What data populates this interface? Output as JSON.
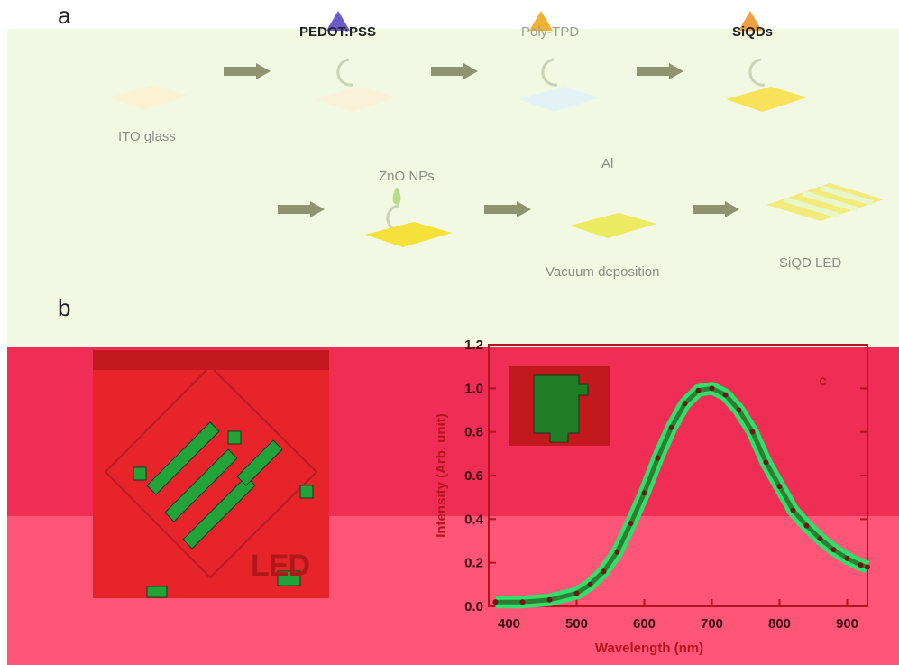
{
  "panel_a": {
    "letter": "a",
    "steps": {
      "ito": "ITO glass",
      "pedot": "PEDOT:PSS",
      "polytpd": "Poly-TPD",
      "siqds": "SiQDs",
      "zno": "ZnO NPs",
      "al": "Al",
      "vacuum": "Vacuum deposition",
      "final": "SiQD LED"
    }
  },
  "panel_b": {
    "letter": "b",
    "photo_text": "LED"
  },
  "colors": {
    "panel_a_bg": "#f2f9e2",
    "panel_b_bg": "#ef2d55",
    "arrow": "#8e9470",
    "spectrum": "#2e7d32",
    "highlight": "#2fe06d"
  },
  "chart_data": {
    "type": "line",
    "panel_letter": "c",
    "xlabel": "Wavelength (nm)",
    "ylabel": "Intensity (Arb. unit)",
    "xlim": [
      370,
      930
    ],
    "ylim": [
      0.0,
      1.2
    ],
    "xticks": [
      400,
      500,
      600,
      700,
      800,
      900
    ],
    "yticks": [
      0.0,
      0.2,
      0.4,
      0.6,
      0.8,
      1.0,
      1.2
    ],
    "xtick_labels": [
      "400",
      "500",
      "600",
      "700",
      "800",
      "900"
    ],
    "ytick_labels": [
      "0.0",
      "0.2",
      "0.4",
      "0.6",
      "0.8",
      "1.0",
      "1.2"
    ],
    "series": [
      {
        "x": [
          380,
          420,
          460,
          500,
          520,
          540,
          560,
          580,
          600,
          620,
          640,
          660,
          680,
          700,
          720,
          740,
          760,
          780,
          800,
          820,
          840,
          860,
          880,
          900,
          920,
          930
        ],
        "values": [
          0.02,
          0.02,
          0.03,
          0.06,
          0.1,
          0.16,
          0.25,
          0.38,
          0.52,
          0.68,
          0.82,
          0.93,
          0.99,
          1.0,
          0.97,
          0.9,
          0.8,
          0.66,
          0.55,
          0.44,
          0.37,
          0.31,
          0.26,
          0.22,
          0.19,
          0.18
        ]
      }
    ]
  }
}
